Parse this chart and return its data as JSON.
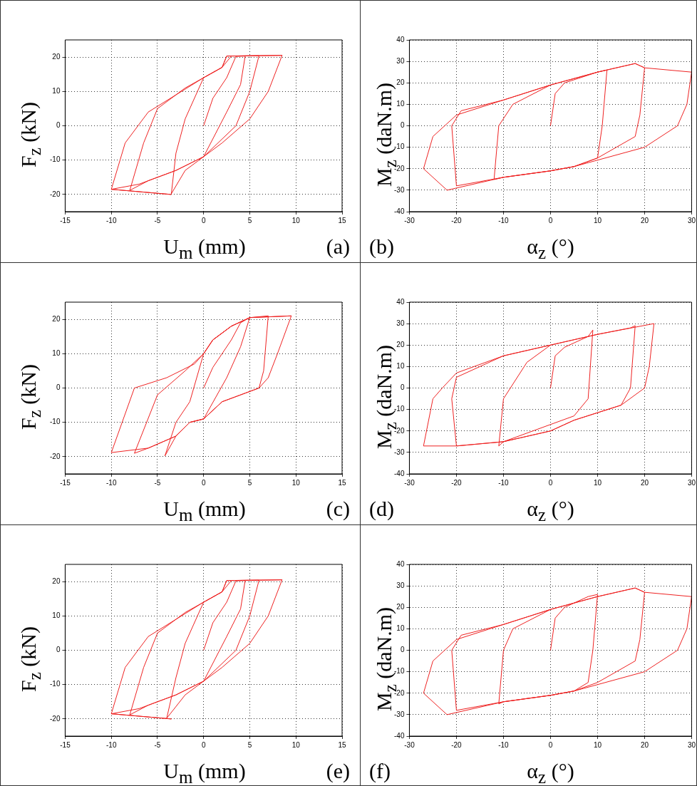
{
  "chart_data": [
    {
      "type": "line",
      "xlabel": "U$_{m}$  (mm)",
      "ylabel": "F$_{z}$  (kN)",
      "annotations": [
        "(a)"
      ],
      "xlim": [
        -15,
        15
      ],
      "ylim": [
        -25,
        25
      ],
      "xticks": [
        -15,
        -10,
        -5,
        0,
        5,
        10,
        15
      ],
      "yticks": [
        -20,
        -10,
        0,
        10,
        20
      ],
      "grid": true,
      "series": [
        {
          "color": "#ee2222",
          "x": [
            0,
            1,
            2.5,
            3.5,
            4.5,
            4,
            2.5,
            0,
            -2,
            -3.5,
            -3,
            -2,
            0,
            2,
            2.5,
            6,
            5,
            3.5,
            0,
            -3,
            -6,
            -8,
            -6.5,
            -5,
            -2,
            0,
            2,
            3,
            8.5,
            7,
            5,
            2,
            0,
            -3,
            -7,
            -10,
            -3.5,
            -10,
            -8.5,
            -6,
            -3,
            0,
            2,
            2.5,
            8.5
          ],
          "values": [
            0,
            8,
            14,
            20.2,
            20.3,
            12,
            4,
            -9,
            -13,
            -19.8,
            -8,
            2,
            14,
            17,
            20.3,
            20.4,
            10,
            0,
            -9,
            -13,
            -16,
            -18.8,
            -5,
            5,
            11,
            14,
            17,
            20.3,
            20.5,
            10,
            2,
            -5,
            -9,
            -13,
            -17,
            -18.5,
            -20,
            -18.5,
            -5,
            4,
            9,
            14,
            17,
            20.3,
            20.5
          ]
        }
      ]
    },
    {
      "type": "line",
      "xlabel": "α$_{z}$  (°)",
      "ylabel": "M$_{z}$  (daN.m)",
      "annotations": [
        "(b)"
      ],
      "xlim": [
        -30,
        30
      ],
      "ylim": [
        -40,
        40
      ],
      "xticks": [
        -30,
        -20,
        -10,
        0,
        10,
        20,
        30
      ],
      "yticks": [
        -40,
        -30,
        -20,
        -10,
        0,
        10,
        20,
        30,
        40
      ],
      "grid": true,
      "series": [
        {
          "color": "#ee2222",
          "x": [
            0,
            1,
            3,
            10,
            12,
            11,
            10,
            5,
            0,
            -10,
            -12,
            -11,
            -8,
            0,
            10,
            18,
            20,
            19,
            18,
            10,
            5,
            0,
            -10,
            -20,
            -21,
            -19,
            -10,
            0,
            10,
            18,
            20,
            30,
            29,
            27,
            20,
            5,
            0,
            -10,
            -22,
            -27,
            -25,
            -20,
            -10,
            0
          ],
          "values": [
            0,
            15,
            20,
            25,
            26,
            0,
            -15,
            -19,
            -21,
            -24,
            -25,
            0,
            10,
            19,
            25,
            29,
            27,
            5,
            -5,
            -15,
            -19,
            -21,
            -24,
            -28,
            0,
            7,
            12,
            19,
            25,
            29,
            27,
            25,
            10,
            0,
            -10,
            -19,
            -21,
            -24,
            -30,
            -20,
            -5,
            5,
            12,
            19
          ]
        }
      ]
    },
    {
      "type": "line",
      "xlabel": "U$_{m}$  (mm)",
      "ylabel": "F$_{z}$  (kN)",
      "annotations": [
        "(c)"
      ],
      "xlim": [
        -15,
        15
      ],
      "ylim": [
        -25,
        25
      ],
      "xticks": [
        -15,
        -10,
        -5,
        0,
        5,
        10,
        15
      ],
      "yticks": [
        -20,
        -10,
        0,
        10,
        20
      ],
      "grid": true,
      "series": [
        {
          "color": "#ee2222",
          "x": [
            0,
            1,
            3,
            4,
            5,
            4,
            2.5,
            0,
            -1.5,
            -3,
            -4.2,
            -3,
            -1.5,
            0,
            1,
            3,
            5,
            7,
            6.5,
            6,
            2,
            0,
            -1.5,
            -3,
            -6,
            -7.5,
            -5,
            -2,
            0,
            1,
            3,
            5,
            9.5,
            8,
            7,
            6,
            2,
            0,
            -1.5,
            -3,
            -6,
            -10,
            -7.5,
            -4,
            -1,
            0,
            1,
            3,
            5,
            9.5
          ],
          "values": [
            0,
            6,
            14,
            19,
            20.5,
            12,
            3,
            -9,
            -10,
            -14,
            -19.8,
            -10,
            -4,
            10,
            14,
            18,
            20.5,
            21,
            5,
            0,
            -4,
            -9,
            -10,
            -14,
            -17.5,
            -19,
            -2,
            5,
            10,
            14,
            18,
            20.5,
            21,
            10,
            3,
            0,
            -4,
            -9,
            -10,
            -14,
            -17.5,
            -18.8,
            0,
            3,
            7,
            10,
            14,
            18,
            20.5,
            21
          ]
        }
      ]
    },
    {
      "type": "line",
      "xlabel": "α$_{z}$  (°)",
      "ylabel": "M$_{z}$  (daN.m)",
      "annotations": [
        "(d)"
      ],
      "xlim": [
        -30,
        30
      ],
      "ylim": [
        -40,
        40
      ],
      "xticks": [
        -30,
        -20,
        -10,
        0,
        10,
        20,
        30
      ],
      "yticks": [
        -40,
        -30,
        -20,
        -10,
        0,
        10,
        20,
        30,
        40
      ],
      "grid": true,
      "series": [
        {
          "color": "#ee2222",
          "x": [
            0,
            1,
            3,
            8,
            9,
            8,
            5,
            0,
            -10,
            -11,
            -10,
            -5,
            0,
            10,
            17,
            18,
            17,
            15,
            5,
            0,
            -10,
            -20,
            -21,
            -20,
            -10,
            0,
            10,
            22,
            21,
            20,
            15,
            5,
            0,
            -10,
            -20,
            -27,
            -25,
            -23,
            -20,
            -10,
            0
          ],
          "values": [
            0,
            15,
            19,
            24,
            27,
            -5,
            -13,
            -17,
            -25,
            -27,
            -5,
            12,
            20,
            25,
            28,
            29,
            0,
            -8,
            -15,
            -20,
            -25,
            -27,
            -5,
            5,
            15,
            20,
            25,
            30,
            10,
            0,
            -8,
            -15,
            -20,
            -25,
            -27,
            -27,
            -5,
            0,
            7,
            15,
            20
          ]
        }
      ]
    },
    {
      "type": "line",
      "xlabel": "U$_{m}$  (mm)",
      "ylabel": "F$_{z}$  (kN)",
      "annotations": [
        "(e)"
      ],
      "xlim": [
        -15,
        15
      ],
      "ylim": [
        -25,
        25
      ],
      "xticks": [
        -15,
        -10,
        -5,
        0,
        5,
        10,
        15
      ],
      "yticks": [
        -20,
        -10,
        0,
        10,
        20
      ],
      "grid": true,
      "series": [
        {
          "color": "#ee2222",
          "x": [
            0,
            1,
            2.5,
            3.5,
            4.5,
            4,
            2.5,
            0,
            -2,
            -4,
            -3,
            -2,
            0,
            2,
            2.5,
            6,
            5,
            3.5,
            0,
            -3,
            -6,
            -8,
            -6.5,
            -5,
            -2,
            0,
            2,
            3,
            8.5,
            7,
            5,
            2,
            0,
            -3,
            -7,
            -10,
            -3.5,
            -10,
            -8.5,
            -6,
            -3,
            0,
            2,
            2.5,
            8.5
          ],
          "values": [
            0,
            8,
            14,
            20.2,
            20.3,
            12,
            4,
            -9,
            -13,
            -19.8,
            -8,
            2,
            14,
            17,
            20.3,
            20.4,
            10,
            0,
            -9,
            -13,
            -16,
            -18.8,
            -5,
            5,
            11,
            14,
            17,
            20.3,
            20.5,
            10,
            2,
            -5,
            -9,
            -13,
            -17,
            -18.5,
            -20,
            -18.5,
            -5,
            4,
            9,
            14,
            17,
            20.3,
            20.5
          ]
        }
      ]
    },
    {
      "type": "line",
      "xlabel": "α$_{z}$  (°)",
      "ylabel": "M$_{z}$  (daN.m)",
      "annotations": [
        "(f)"
      ],
      "xlim": [
        -30,
        30
      ],
      "ylim": [
        -40,
        40
      ],
      "xticks": [
        -30,
        -20,
        -10,
        0,
        10,
        20,
        30
      ],
      "yticks": [
        -40,
        -30,
        -20,
        -10,
        0,
        10,
        20,
        30,
        40
      ],
      "grid": true,
      "series": [
        {
          "color": "#ee2222",
          "x": [
            0,
            1,
            3,
            8,
            10,
            9,
            8,
            5,
            0,
            -10,
            -11,
            -10,
            -8,
            0,
            10,
            18,
            20,
            19,
            18,
            10,
            5,
            0,
            -10,
            -20,
            -21,
            -19,
            -10,
            0,
            10,
            18,
            20,
            30,
            29,
            27,
            20,
            5,
            0,
            -10,
            -22,
            -27,
            -25,
            -20,
            -10,
            0
          ],
          "values": [
            0,
            15,
            20,
            25,
            26,
            0,
            -15,
            -19,
            -21,
            -24,
            -25,
            0,
            10,
            19,
            25,
            29,
            27,
            5,
            -5,
            -15,
            -19,
            -21,
            -24,
            -28,
            0,
            7,
            12,
            19,
            25,
            29,
            27,
            25,
            10,
            0,
            -10,
            -19,
            -21,
            -24,
            -30,
            -20,
            -5,
            5,
            12,
            19
          ]
        }
      ]
    }
  ]
}
